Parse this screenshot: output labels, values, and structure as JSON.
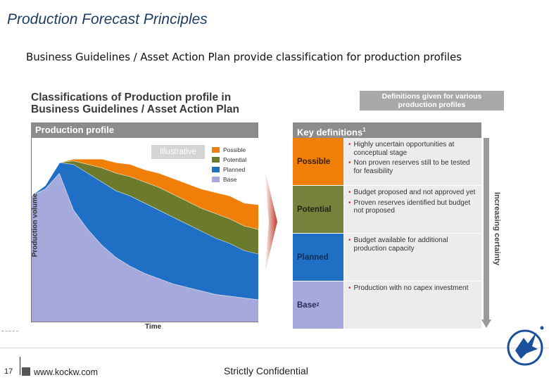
{
  "slide": {
    "title": "Production Forecast Principles",
    "subtitle": "Business Guidelines / Asset Action Plan provide classification for production profiles"
  },
  "classification": {
    "title_line1": "Classifications of Production profile in",
    "title_line2": "Business Guidelines / Asset Action Plan",
    "definitions_box_line1": "Definitions  given for various",
    "definitions_box_line2": "production profiles"
  },
  "chart": {
    "header": "Production profile",
    "badge": "Illustrative",
    "ylabel": "Production volume",
    "xlabel": "Time",
    "legend": [
      {
        "name": "Possible",
        "color": "#f07f09"
      },
      {
        "name": "Potential",
        "color": "#6b7a2c"
      },
      {
        "name": "Planned",
        "color": "#1f6fc4"
      },
      {
        "name": "Base",
        "color": "#a6a9dc"
      }
    ]
  },
  "chart_data": {
    "type": "area",
    "stacked": true,
    "xlabel": "Time",
    "ylabel": "Production volume",
    "x": [
      0,
      1,
      2,
      3,
      4,
      5,
      6,
      7,
      8,
      9,
      10,
      11,
      12,
      13,
      14,
      15,
      16
    ],
    "series": [
      {
        "name": "Base",
        "values": [
          0.72,
          0.76,
          0.85,
          0.64,
          0.53,
          0.44,
          0.37,
          0.32,
          0.28,
          0.25,
          0.22,
          0.2,
          0.18,
          0.16,
          0.15,
          0.14,
          0.13
        ]
      },
      {
        "name": "Planned",
        "values": [
          0.0,
          0.02,
          0.06,
          0.26,
          0.32,
          0.36,
          0.38,
          0.4,
          0.4,
          0.39,
          0.38,
          0.36,
          0.34,
          0.32,
          0.3,
          0.27,
          0.26
        ]
      },
      {
        "name": "Potential",
        "values": [
          0.0,
          0.0,
          0.0,
          0.02,
          0.05,
          0.08,
          0.1,
          0.11,
          0.12,
          0.13,
          0.13,
          0.13,
          0.13,
          0.14,
          0.14,
          0.14,
          0.14
        ]
      },
      {
        "name": "Possible",
        "values": [
          0.0,
          0.0,
          0.0,
          0.01,
          0.03,
          0.05,
          0.06,
          0.07,
          0.07,
          0.08,
          0.09,
          0.1,
          0.11,
          0.12,
          0.13,
          0.13,
          0.14
        ]
      }
    ],
    "ylim": [
      0,
      1.05
    ]
  },
  "key_definitions": {
    "header": "Key definitions",
    "header_sup": "1",
    "rows": [
      {
        "category": "Possible",
        "sup": "",
        "bg": "#f07f09",
        "fg": "#3b2108",
        "bullets": [
          "Highly uncertain opportunities at conceptual stage",
          "Non proven reserves still to be tested for feasibility"
        ]
      },
      {
        "category": "Potential",
        "sup": "",
        "bg": "#76823c",
        "fg": "#1e2310",
        "bullets": [
          "Budget proposed and not approved yet",
          "Proven reserves identified but budget not proposed"
        ]
      },
      {
        "category": "Planned",
        "sup": "",
        "bg": "#1f6fc4",
        "fg": "#0f2f55",
        "bullets": [
          "Budget available for additional production capacity"
        ]
      },
      {
        "category": "Base",
        "sup": "2",
        "bg": "#a6a9dc",
        "fg": "#2a2d55",
        "bullets": [
          "Production with no capex investment"
        ]
      }
    ],
    "certainty_label": "Increasing certainty"
  },
  "footer": {
    "page_number": "17",
    "website": "www.kockw.com",
    "confidential": "Strictly Confidential"
  },
  "logo": {
    "name": "Kuwait Oil Company",
    "icon": "falcon-logo-icon",
    "color": "#1a4f9c"
  }
}
